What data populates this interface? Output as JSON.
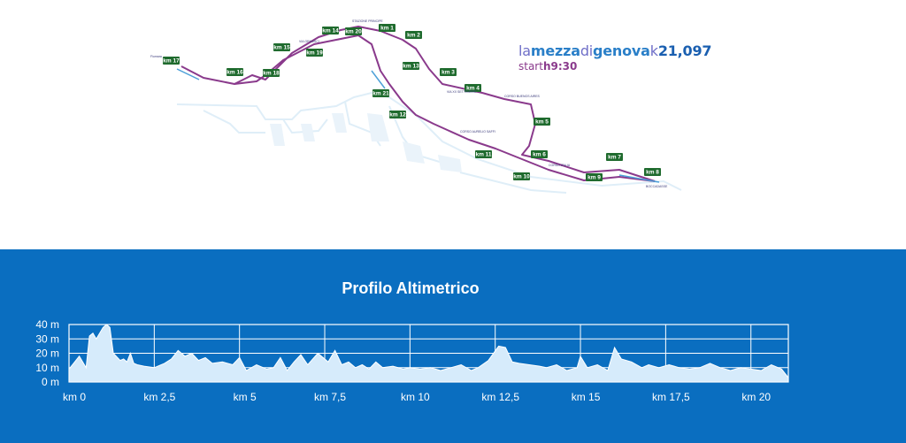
{
  "event": {
    "brand_la": "la",
    "brand_mezza": "mezza",
    "brand_di": "di",
    "brand_genova": "genova",
    "brand_k": "k",
    "brand_distance": "21,097",
    "start_label": "start",
    "start_time": "h9:30"
  },
  "map": {
    "markers": [
      "km 1",
      "km 2",
      "km 3",
      "km 4",
      "km 5",
      "km 6",
      "km 7",
      "km 8",
      "km 9",
      "km 10",
      "km 11",
      "km 12",
      "km 13",
      "km 14",
      "km 15",
      "km 16",
      "km 17",
      "km 18",
      "km 19",
      "km 20",
      "km 21"
    ],
    "route_color": "#8a3a8c",
    "marker_color": "#1f6b2e"
  },
  "profile": {
    "title": "Profilo Altimetrico",
    "background": "#0a6ec0"
  },
  "chart_data": {
    "type": "area",
    "title": "Profilo Altimetrico",
    "xlabel": "",
    "ylabel": "",
    "x_tick_labels": [
      "km 0",
      "km 2,5",
      "km 5",
      "km 7,5",
      "km 10",
      "km 12,5",
      "km 15",
      "km 17,5",
      "km 20"
    ],
    "y_tick_labels": [
      "0 m",
      "10 m",
      "20 m",
      "30 m",
      "40 m"
    ],
    "xlim": [
      0,
      21.097
    ],
    "ylim": [
      0,
      40
    ],
    "grid": true,
    "series": [
      {
        "x": [
          0,
          0.3,
          0.5,
          0.6,
          0.7,
          0.8,
          1.0,
          1.1,
          1.2,
          1.3,
          1.5,
          1.6,
          1.7,
          1.8,
          1.9,
          2.0,
          2.2,
          2.5,
          2.8,
          3.0,
          3.2,
          3.4,
          3.6,
          3.8,
          4.0,
          4.2,
          4.5,
          4.8,
          5.0,
          5.2,
          5.5,
          5.8,
          6.0,
          6.2,
          6.4,
          6.6,
          6.8,
          7.0,
          7.3,
          7.6,
          7.8,
          8.0,
          8.2,
          8.4,
          8.6,
          8.8,
          9.0,
          9.2,
          9.5,
          9.8,
          10.0,
          10.3,
          10.6,
          10.9,
          11.2,
          11.5,
          11.8,
          12.0,
          12.3,
          12.6,
          12.8,
          13.0,
          13.2,
          13.5,
          13.8,
          14.0,
          14.3,
          14.6,
          14.9,
          15.0,
          15.2,
          15.5,
          15.8,
          16.0,
          16.2,
          16.5,
          16.8,
          17.0,
          17.3,
          17.6,
          17.9,
          18.2,
          18.5,
          18.8,
          19.1,
          19.4,
          19.7,
          20.0,
          20.3,
          20.6,
          20.9,
          21.097
        ],
        "y": [
          9,
          18,
          10,
          32,
          34,
          30,
          38,
          40,
          38,
          20,
          15,
          16,
          14,
          20,
          13,
          12,
          11,
          10,
          13,
          16,
          22,
          18,
          20,
          15,
          17,
          13,
          14,
          12,
          17,
          8,
          12,
          9,
          10,
          17,
          8,
          14,
          19,
          12,
          20,
          14,
          22,
          12,
          14,
          10,
          12,
          9,
          14,
          10,
          11,
          9,
          10,
          9,
          10,
          8,
          10,
          12,
          8,
          10,
          15,
          25,
          24,
          14,
          13,
          12,
          11,
          10,
          12,
          8,
          10,
          18,
          10,
          12,
          8,
          24,
          16,
          14,
          10,
          12,
          10,
          12,
          10,
          9,
          10,
          13,
          10,
          8,
          10,
          9,
          8,
          12,
          9,
          3
        ],
        "fill": "#d6ebfb",
        "stroke": "#ffffff"
      }
    ]
  }
}
